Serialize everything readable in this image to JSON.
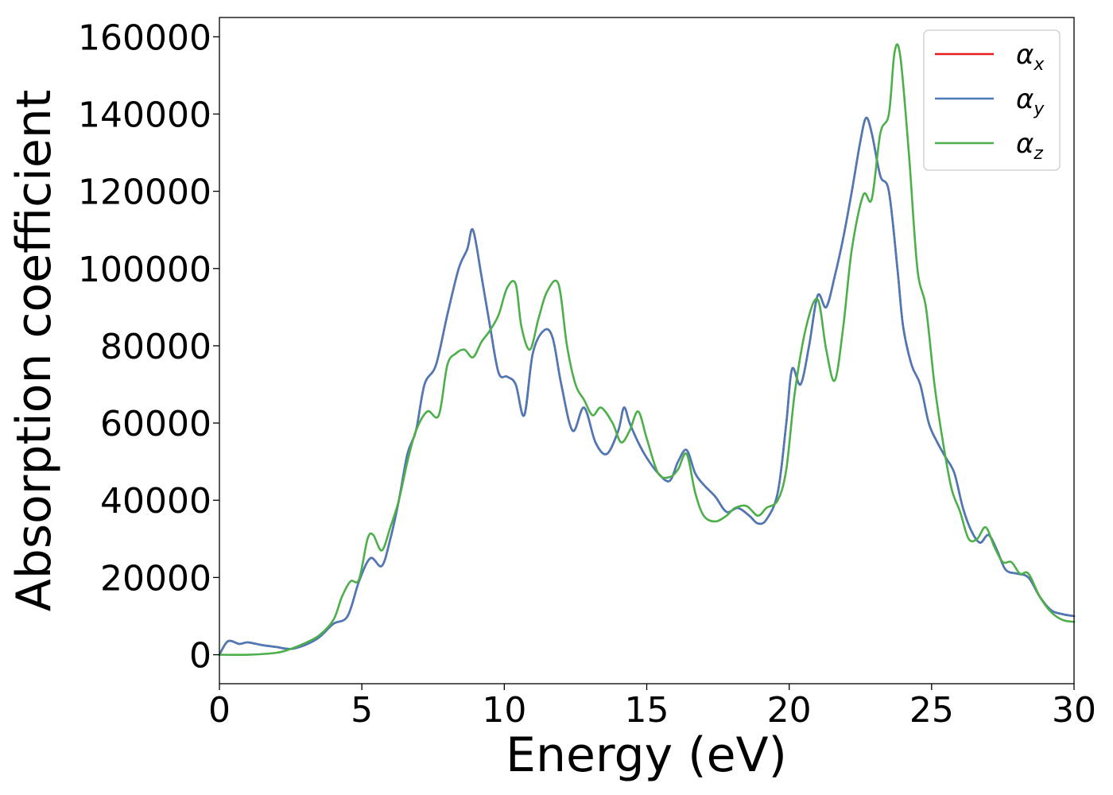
{
  "chart_data": {
    "type": "line",
    "title": "",
    "xlabel": "Energy (eV)",
    "ylabel": "Absorption coefficient",
    "xlim": [
      0,
      30
    ],
    "ylim": [
      -7500,
      165000
    ],
    "xticks": [
      0,
      5,
      10,
      15,
      20,
      25,
      30
    ],
    "yticks": [
      0,
      20000,
      40000,
      60000,
      80000,
      100000,
      120000,
      140000,
      160000
    ],
    "grid": false,
    "legend_position": "top-right",
    "series": [
      {
        "name": "α",
        "subscript": "x",
        "color": "#e41a1c",
        "x": [
          0,
          0.3,
          0.7,
          1.0,
          1.5,
          2.0,
          2.5,
          3.0,
          3.5,
          4.0,
          4.5,
          4.9,
          5.3,
          5.7,
          6.0,
          6.3,
          6.6,
          6.9,
          7.2,
          7.6,
          8.0,
          8.4,
          8.7,
          8.9,
          9.2,
          9.5,
          9.8,
          10.1,
          10.4,
          10.7,
          11.0,
          11.4,
          11.7,
          12.0,
          12.4,
          12.8,
          13.2,
          13.6,
          14.0,
          14.2,
          14.4,
          14.7,
          15.0,
          15.4,
          15.8,
          16.1,
          16.4,
          16.7,
          17.0,
          17.4,
          17.8,
          18.2,
          18.6,
          18.9,
          19.2,
          19.6,
          19.9,
          20.1,
          20.4,
          20.7,
          21.0,
          21.3,
          21.6,
          21.9,
          22.2,
          22.5,
          22.7,
          22.9,
          23.2,
          23.5,
          23.8,
          24.0,
          24.3,
          24.6,
          24.9,
          25.2,
          25.5,
          25.8,
          26.1,
          26.4,
          26.7,
          27.0,
          27.3,
          27.6,
          28.0,
          28.4,
          28.8,
          29.2,
          29.6,
          30.0
        ],
        "y": [
          0,
          3500,
          2800,
          3200,
          2500,
          2000,
          1500,
          2500,
          4500,
          8000,
          10000,
          19000,
          25000,
          23000,
          30000,
          40000,
          52000,
          58000,
          70000,
          75000,
          88000,
          100000,
          105000,
          110000,
          98000,
          85000,
          73000,
          72000,
          70000,
          62000,
          78000,
          84000,
          82000,
          70000,
          58000,
          64000,
          55000,
          52000,
          58000,
          64000,
          60000,
          55000,
          51000,
          47000,
          45000,
          50000,
          53000,
          47000,
          44000,
          41000,
          37000,
          38000,
          36000,
          34000,
          35000,
          42000,
          60000,
          74000,
          70000,
          80000,
          93000,
          90000,
          98000,
          108000,
          120000,
          133000,
          139000,
          135000,
          124000,
          120000,
          100000,
          85000,
          75000,
          70000,
          60000,
          55000,
          51000,
          47000,
          38000,
          32000,
          29000,
          31000,
          27000,
          22000,
          21000,
          20000,
          15000,
          11500,
          10500,
          10000
        ]
      },
      {
        "name": "α",
        "subscript": "y",
        "color": "#4a7ab8",
        "x": [
          0,
          0.3,
          0.7,
          1.0,
          1.5,
          2.0,
          2.5,
          3.0,
          3.5,
          4.0,
          4.5,
          4.9,
          5.3,
          5.7,
          6.0,
          6.3,
          6.6,
          6.9,
          7.2,
          7.6,
          8.0,
          8.4,
          8.7,
          8.9,
          9.2,
          9.5,
          9.8,
          10.1,
          10.4,
          10.7,
          11.0,
          11.4,
          11.7,
          12.0,
          12.4,
          12.8,
          13.2,
          13.6,
          14.0,
          14.2,
          14.4,
          14.7,
          15.0,
          15.4,
          15.8,
          16.1,
          16.4,
          16.7,
          17.0,
          17.4,
          17.8,
          18.2,
          18.6,
          18.9,
          19.2,
          19.6,
          19.9,
          20.1,
          20.4,
          20.7,
          21.0,
          21.3,
          21.6,
          21.9,
          22.2,
          22.5,
          22.7,
          22.9,
          23.2,
          23.5,
          23.8,
          24.0,
          24.3,
          24.6,
          24.9,
          25.2,
          25.5,
          25.8,
          26.1,
          26.4,
          26.7,
          27.0,
          27.3,
          27.6,
          28.0,
          28.4,
          28.8,
          29.2,
          29.6,
          30.0
        ],
        "y": [
          0,
          3500,
          2800,
          3200,
          2500,
          2000,
          1500,
          2500,
          4500,
          8000,
          10000,
          19000,
          25000,
          23000,
          30000,
          40000,
          52000,
          58000,
          70000,
          75000,
          88000,
          100000,
          105000,
          110000,
          98000,
          85000,
          73000,
          72000,
          70000,
          62000,
          78000,
          84000,
          82000,
          70000,
          58000,
          64000,
          55000,
          52000,
          58000,
          64000,
          60000,
          55000,
          51000,
          47000,
          45000,
          50000,
          53000,
          47000,
          44000,
          41000,
          37000,
          38000,
          36000,
          34000,
          35000,
          42000,
          60000,
          74000,
          70000,
          80000,
          93000,
          90000,
          98000,
          108000,
          120000,
          133000,
          139000,
          135000,
          124000,
          120000,
          100000,
          85000,
          75000,
          70000,
          60000,
          55000,
          51000,
          47000,
          38000,
          32000,
          29000,
          31000,
          27000,
          22000,
          21000,
          20000,
          15000,
          11500,
          10500,
          10000
        ]
      },
      {
        "name": "α",
        "subscript": "z",
        "color": "#4daf4a",
        "x": [
          0,
          1.0,
          2.0,
          2.5,
          3.0,
          3.5,
          4.0,
          4.3,
          4.6,
          4.9,
          5.2,
          5.4,
          5.7,
          6.0,
          6.3,
          6.6,
          6.9,
          7.3,
          7.7,
          8.0,
          8.3,
          8.6,
          8.9,
          9.2,
          9.5,
          9.8,
          10.1,
          10.4,
          10.6,
          10.9,
          11.2,
          11.5,
          11.9,
          12.2,
          12.5,
          12.8,
          13.1,
          13.4,
          13.8,
          14.1,
          14.4,
          14.7,
          15.0,
          15.4,
          15.8,
          16.1,
          16.4,
          16.7,
          17.0,
          17.4,
          17.8,
          18.1,
          18.5,
          18.9,
          19.2,
          19.6,
          19.9,
          20.2,
          20.6,
          21.0,
          21.3,
          21.6,
          21.9,
          22.2,
          22.6,
          22.9,
          23.2,
          23.5,
          23.7,
          23.9,
          24.2,
          24.5,
          24.8,
          25.1,
          25.4,
          25.7,
          26.0,
          26.3,
          26.6,
          26.9,
          27.2,
          27.5,
          27.8,
          28.1,
          28.4,
          28.8,
          29.2,
          29.6,
          30.0
        ],
        "y": [
          0,
          0,
          500,
          1500,
          3000,
          5000,
          9000,
          15000,
          19000,
          19500,
          30000,
          31000,
          27000,
          33000,
          40000,
          50000,
          58000,
          63000,
          62000,
          75000,
          78000,
          79000,
          77000,
          81000,
          84000,
          88000,
          95000,
          96000,
          85000,
          79000,
          87000,
          94000,
          96000,
          80000,
          70000,
          66000,
          62000,
          64000,
          60000,
          55000,
          58000,
          63000,
          56000,
          47000,
          46000,
          48000,
          52000,
          42000,
          36000,
          34500,
          36000,
          38000,
          38500,
          36000,
          38000,
          40000,
          48000,
          68000,
          85000,
          92000,
          79000,
          71000,
          85000,
          105000,
          119000,
          118000,
          135000,
          140000,
          156000,
          155000,
          130000,
          100000,
          90000,
          70000,
          55000,
          43000,
          37000,
          30000,
          30000,
          33000,
          28000,
          24000,
          24000,
          21000,
          21000,
          15000,
          11000,
          9000,
          8500
        ]
      }
    ]
  }
}
